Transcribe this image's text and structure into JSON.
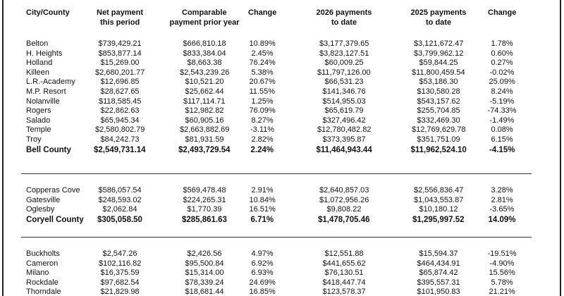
{
  "table": {
    "header": [
      [
        "City/County"
      ],
      [
        "Net payment",
        "this period"
      ],
      [
        "Comparable",
        "payment prior year"
      ],
      [
        "Change"
      ],
      [
        "2026 payments",
        "to date"
      ],
      [
        "2025 payments",
        "to date"
      ],
      [
        "Change"
      ]
    ],
    "groups": [
      {
        "rows": [
          [
            "Belton",
            "$739,429.21",
            "$666,810.18",
            "10.89%",
            "$3,177,379.65",
            "$3,121,672.47",
            "1.78%"
          ],
          [
            "H. Heights",
            "$853,877.14",
            "$833,384.04",
            "2.45%",
            "$3,823,127.51",
            "$3,799,962.12",
            "0.60%"
          ],
          [
            "Holland",
            "$15,269.00",
            "$8,663.38",
            "76.24%",
            "$60,009.25",
            "$59,844.25",
            "0.27%"
          ],
          [
            "Killeen",
            "$2,680,201.77",
            "$2,543,239.26",
            "5.38%",
            "$11,797,126.00",
            "$11,800,459.54",
            "-0.02%"
          ],
          [
            "L.R.-Academy",
            "$12,696.85",
            "$10,521.20",
            "20.67%",
            "$66,531.23",
            "$53,186.30",
            "25.09%"
          ],
          [
            "M.P. Resort",
            "$28,627.65",
            "$25,662.44",
            "11.55%",
            "$141,346.76",
            "$130,580.28",
            "8.24%"
          ],
          [
            "Nolanville",
            "$118,585.45",
            "$117,114.71",
            "1.25%",
            "$514,955.03",
            "$543,157.62",
            "-5.19%"
          ],
          [
            "Rogers",
            "$22,862.63",
            "$12,982.82",
            "76.09%",
            "$65,619.79",
            "$255,704.85",
            "-74.33%"
          ],
          [
            "Salado",
            "$65,945.34",
            "$60,905.16",
            "8.27%",
            "$327,496.42",
            "$332,469.30",
            "-1.49%"
          ],
          [
            "Temple",
            "$2,580,802.79",
            "$2,663,882.69",
            "-3.11%",
            "$12,780,482.82",
            "$12,769,629.78",
            "0.08%"
          ],
          [
            "Troy",
            "$84,242.73",
            "$81,931.59",
            "2.82%",
            "$373,395.87",
            "$351,751.09",
            "6.15%"
          ]
        ],
        "total": [
          "Bell County",
          "$2,549,731.14",
          "$2,493,729.54",
          "2.24%",
          "$11,464,943.44",
          "$11,962,524.10",
          "-4.15%"
        ]
      },
      {
        "rows": [
          [
            "Copperas Cove",
            "$586,057.54",
            "$569,478.48",
            "2.91%",
            "$2,640,857.03",
            "$2,556,836.47",
            "3.28%"
          ],
          [
            "Gatesville",
            "$248,593.02",
            "$224,265.31",
            "10.84%",
            "$1,072,956.26",
            "$1,043,553.87",
            "2.81%"
          ],
          [
            "Oglesby",
            "$2,062.84",
            "$1,770.39",
            "16.51%",
            "$9,808.22",
            "$10,180.12",
            "-3.65%"
          ]
        ],
        "total": [
          "Coryell County",
          "$305,058.50",
          "$285,861.63",
          "6.71%",
          "$1,478,705.46",
          "$1,295,997.52",
          "14.09%"
        ]
      },
      {
        "rows": [
          [
            "Buckholts",
            "$2,547.26",
            "$2,426.56",
            "4.97%",
            "$12,551.88",
            "$15,594.37",
            "-19.51%"
          ],
          [
            "Cameron",
            "$102,116.82",
            "$95,500.84",
            "6.92%",
            "$441,655.62",
            "$464,434.91",
            "-4.90%"
          ],
          [
            "Milano",
            "$16,375.59",
            "$15,314.00",
            "6.93%",
            "$76,130.51",
            "$65,874.42",
            "15.56%"
          ],
          [
            "Rockdale",
            "$97,682.54",
            "$78,339.24",
            "24.69%",
            "$418,447.74",
            "$395,557.31",
            "5.78%"
          ],
          [
            "Thorndale",
            "$21,829.98",
            "$18,681.44",
            "16.85%",
            "$123,578.37",
            "$101,950.83",
            "21.21%"
          ]
        ]
      }
    ]
  }
}
